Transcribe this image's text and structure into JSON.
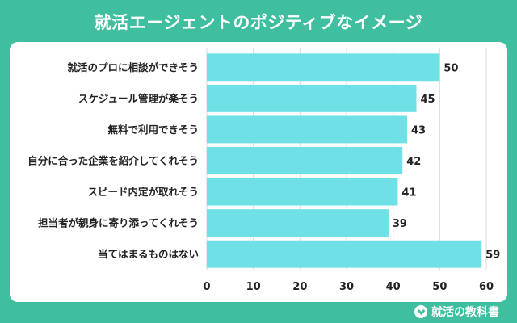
{
  "page": {
    "title": "就活エージェントのポジティブなイメージ"
  },
  "brand": {
    "name": "就活の教科書"
  },
  "colors": {
    "background": "#3fbf9f",
    "bar": "#6ee0e6",
    "panel": "#ffffff",
    "grid": "#d9d9d9"
  },
  "chart_data": {
    "type": "bar",
    "orientation": "horizontal",
    "categories": [
      "就活のプロに相談ができそう",
      "スケジュール管理が楽そう",
      "無料で利用できそう",
      "自分に合った企業を紹介してくれそう",
      "スピード内定が取れそう",
      "担当者が親身に寄り添ってくれそう",
      "当てはまるものはない"
    ],
    "values": [
      50,
      45,
      43,
      42,
      41,
      39,
      59
    ],
    "xlim": [
      0,
      60
    ],
    "xticks": [
      0,
      10,
      20,
      30,
      40,
      50,
      60
    ],
    "grid": "vertical",
    "data_labels": true
  }
}
